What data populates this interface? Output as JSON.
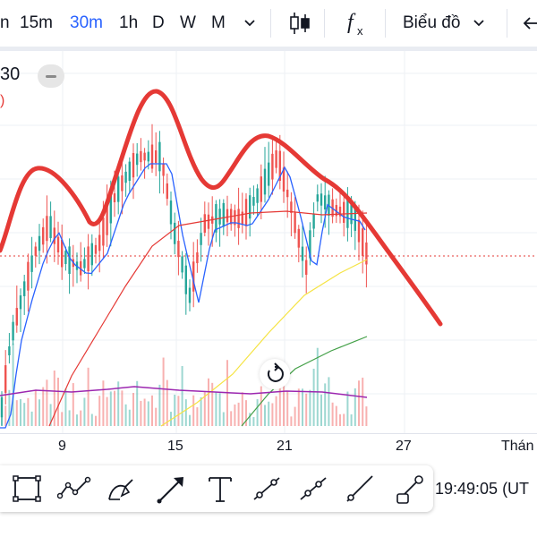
{
  "toolbar": {
    "timeframes": [
      "n",
      "15m",
      "30m",
      "1h",
      "D",
      "W",
      "M"
    ],
    "active_timeframe": "30m",
    "chart_type_label": "Biểu đồ",
    "icons": [
      "chevron-down-icon",
      "candlestick-icon",
      "indicators-fx-icon",
      "chevron-down-icon",
      "back-arrow-icon"
    ]
  },
  "legend": {
    "value_text": "30",
    "red_text": ")"
  },
  "x_axis": {
    "labels": [
      "9",
      "15",
      "21",
      "27",
      "Thán"
    ]
  },
  "status": {
    "time": "19:49:05 (UT"
  },
  "drawing_tools": [
    "rectangle-icon",
    "path-icon",
    "brush-icon",
    "arrow-icon",
    "text-icon",
    "range-icon",
    "trend-line-icon",
    "ray-line-icon",
    "shape-icon"
  ],
  "colors": {
    "accent": "#2962ff",
    "up": "#26a69a",
    "down": "#ef5350",
    "drawn_line": "#e53935",
    "ma_blue": "#2962ff",
    "ma_red": "#e53935",
    "ma_yellow": "#f5e342",
    "ma_green": "#43a047",
    "volume_ma": "#9c27b0"
  }
}
